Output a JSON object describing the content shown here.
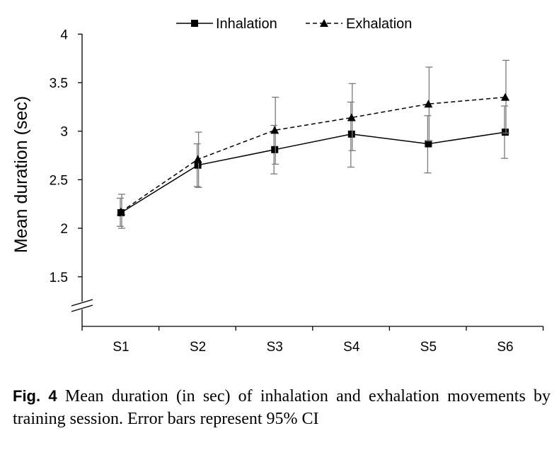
{
  "chart_data": {
    "type": "line",
    "title": "",
    "xlabel": "",
    "ylabel": "Mean duration (sec)",
    "categories": [
      "S1",
      "S2",
      "S3",
      "S4",
      "S5",
      "S6"
    ],
    "ylim": [
      1.2,
      4
    ],
    "yticks": [
      "1.5",
      "2",
      "2.5",
      "3",
      "3.5",
      "4"
    ],
    "y_axis_break": true,
    "legend_position": "top-center",
    "grid": false,
    "series": [
      {
        "name": "Inhalation",
        "marker": "square",
        "line_style": "solid",
        "color": "#000000",
        "values": [
          2.16,
          2.65,
          2.81,
          2.97,
          2.87,
          2.99
        ],
        "ci_lower": [
          2.02,
          2.43,
          2.56,
          2.63,
          2.57,
          2.72
        ],
        "ci_upper": [
          2.31,
          2.87,
          3.06,
          3.3,
          3.16,
          3.26
        ]
      },
      {
        "name": "Exhalation",
        "marker": "triangle",
        "line_style": "dashed",
        "color": "#000000",
        "values": [
          2.17,
          2.71,
          3.01,
          3.14,
          3.28,
          3.35
        ],
        "ci_lower": [
          2.0,
          2.42,
          2.66,
          2.8,
          2.9,
          2.98
        ],
        "ci_upper": [
          2.35,
          2.99,
          3.35,
          3.49,
          3.66,
          3.73
        ]
      }
    ]
  },
  "caption": {
    "label": "Fig. 4",
    "text": " Mean duration (in sec) of inhalation and exhalation movements by training session. Error bars represent 95% CI"
  }
}
